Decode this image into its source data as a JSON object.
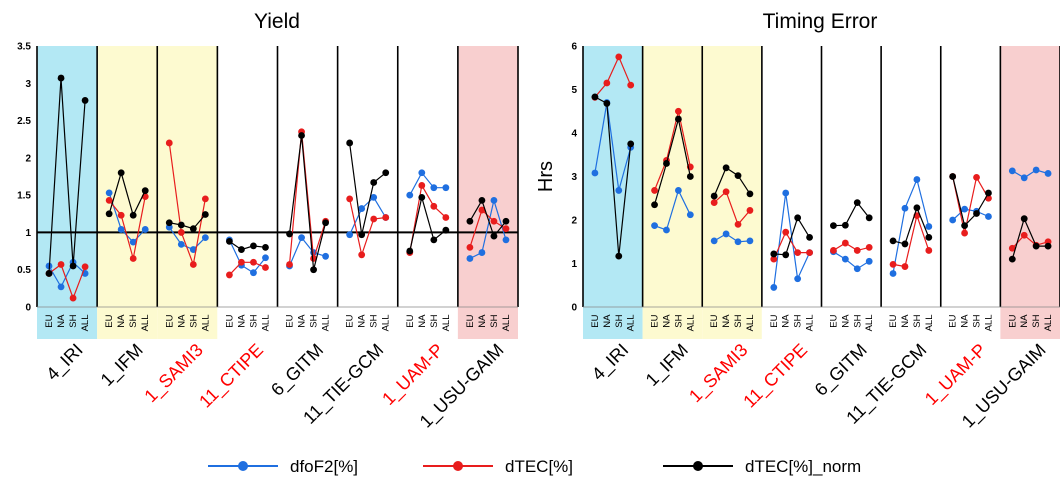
{
  "chart_data": [
    {
      "type": "line",
      "title": "Yield",
      "ylabel": "",
      "ylim": [
        0,
        3.5
      ],
      "yticks": [
        "0",
        "0.5",
        "1",
        "1.5",
        "2",
        "2.5",
        "3",
        "3.5"
      ],
      "reference_line": 1,
      "groups": [
        {
          "name": "4_IRI",
          "label_color": "#000000",
          "bg": "#b3e8f4",
          "regions": [
            "EU",
            "NA",
            "SH",
            "ALL"
          ]
        },
        {
          "name": "1_IFM",
          "label_color": "#000000",
          "bg": "#fdfad0",
          "regions": [
            "EU",
            "NA",
            "SH",
            "ALL"
          ]
        },
        {
          "name": "1_SAMI3",
          "label_color": "#ff0000",
          "bg": "#fdfad0",
          "regions": [
            "EU",
            "NA",
            "SH",
            "ALL"
          ]
        },
        {
          "name": "11_CTIPE",
          "label_color": "#ff0000",
          "bg": "#ffffff",
          "regions": [
            "EU",
            "NA",
            "SH",
            "ALL"
          ]
        },
        {
          "name": "6_GITM",
          "label_color": "#000000",
          "bg": "#ffffff",
          "regions": [
            "EU",
            "NA",
            "SH",
            "ALL"
          ]
        },
        {
          "name": "11_TIE-GCM",
          "label_color": "#000000",
          "bg": "#ffffff",
          "regions": [
            "EU",
            "NA",
            "SH",
            "ALL"
          ]
        },
        {
          "name": "1_UAM-P",
          "label_color": "#ff0000",
          "bg": "#ffffff",
          "regions": [
            "EU",
            "NA",
            "SH",
            "ALL"
          ]
        },
        {
          "name": "1_USU-GAIM",
          "label_color": "#000000",
          "bg": "#f8cfcf",
          "regions": [
            "EU",
            "NA",
            "SH",
            "ALL"
          ]
        }
      ],
      "series": [
        {
          "name": "dfoF2[%]",
          "color": "#1f6fe0",
          "values": [
            [
              0.55,
              0.27,
              0.6,
              0.45
            ],
            [
              1.53,
              1.04,
              0.87,
              1.04
            ],
            [
              1.07,
              0.84,
              0.77,
              0.93
            ],
            [
              0.9,
              0.56,
              0.46,
              0.66
            ],
            [
              0.55,
              0.93,
              0.73,
              0.68
            ],
            [
              0.97,
              1.32,
              1.47,
              1.2
            ],
            [
              1.5,
              1.8,
              1.6,
              1.6
            ],
            [
              0.65,
              0.73,
              1.43,
              0.9
            ]
          ]
        },
        {
          "name": "dTEC[%]",
          "color": "#e81d1d",
          "values": [
            [
              0.45,
              0.57,
              0.12,
              0.54
            ],
            [
              1.43,
              1.23,
              0.65,
              1.48
            ],
            [
              2.2,
              1.0,
              0.57,
              1.45
            ],
            [
              0.43,
              0.6,
              0.6,
              0.53
            ],
            [
              0.57,
              2.35,
              0.65,
              1.15
            ],
            [
              1.45,
              0.7,
              1.18,
              1.2
            ],
            [
              0.73,
              1.63,
              1.35,
              1.2
            ],
            [
              0.8,
              1.3,
              1.15,
              1.05
            ]
          ]
        },
        {
          "name": "dTEC[%]_norm",
          "color": "#000000",
          "values": [
            [
              0.45,
              3.07,
              0.55,
              2.77
            ],
            [
              1.25,
              1.8,
              1.23,
              1.56
            ],
            [
              1.13,
              1.1,
              1.05,
              1.24
            ],
            [
              0.88,
              0.77,
              0.82,
              0.8
            ],
            [
              0.98,
              2.3,
              0.5,
              1.13
            ],
            [
              2.2,
              0.97,
              1.67,
              1.8
            ],
            [
              0.75,
              1.47,
              0.9,
              1.03
            ],
            [
              1.15,
              1.43,
              0.95,
              1.15
            ]
          ]
        }
      ]
    },
    {
      "type": "line",
      "title": "Timing Error",
      "ylabel": "Hrs",
      "ylim": [
        0,
        6
      ],
      "yticks": [
        "0",
        "1",
        "2",
        "3",
        "4",
        "5",
        "6"
      ],
      "groups": [
        {
          "name": "4_IRI",
          "label_color": "#000000",
          "bg": "#b3e8f4",
          "regions": [
            "EU",
            "NA",
            "SH",
            "ALL"
          ]
        },
        {
          "name": "1_IFM",
          "label_color": "#000000",
          "bg": "#fdfad0",
          "regions": [
            "EU",
            "NA",
            "SH",
            "ALL"
          ]
        },
        {
          "name": "1_SAMI3",
          "label_color": "#ff0000",
          "bg": "#fdfad0",
          "regions": [
            "EU",
            "NA",
            "SH",
            "ALL"
          ]
        },
        {
          "name": "11_CTIPE",
          "label_color": "#ff0000",
          "bg": "#ffffff",
          "regions": [
            "EU",
            "NA",
            "SH",
            "ALL"
          ]
        },
        {
          "name": "6_GITM",
          "label_color": "#000000",
          "bg": "#ffffff",
          "regions": [
            "EU",
            "NA",
            "SH",
            "ALL"
          ]
        },
        {
          "name": "11_TIE-GCM",
          "label_color": "#000000",
          "bg": "#ffffff",
          "regions": [
            "EU",
            "NA",
            "SH",
            "ALL"
          ]
        },
        {
          "name": "1_UAM-P",
          "label_color": "#ff0000",
          "bg": "#ffffff",
          "regions": [
            "EU",
            "NA",
            "SH",
            "ALL"
          ]
        },
        {
          "name": "1_USU-GAIM",
          "label_color": "#000000",
          "bg": "#f8cfcf",
          "regions": [
            "EU",
            "NA",
            "SH",
            "ALL"
          ]
        }
      ],
      "series": [
        {
          "name": "dfoF2[%]",
          "color": "#1f6fe0",
          "values": [
            [
              3.08,
              4.7,
              2.68,
              3.67
            ],
            [
              1.87,
              1.77,
              2.68,
              2.12
            ],
            [
              1.52,
              1.68,
              1.5,
              1.52
            ],
            [
              0.45,
              2.62,
              0.65,
              1.25
            ],
            [
              1.27,
              1.1,
              0.88,
              1.05
            ],
            [
              0.77,
              2.27,
              2.93,
              1.85
            ],
            [
              2.0,
              2.25,
              2.2,
              2.08
            ],
            [
              3.13,
              2.97,
              3.15,
              3.07
            ]
          ]
        },
        {
          "name": "dTEC[%]",
          "color": "#e81d1d",
          "values": [
            [
              4.82,
              5.15,
              5.75,
              5.1
            ],
            [
              2.68,
              3.37,
              4.5,
              3.22
            ],
            [
              2.4,
              2.65,
              1.9,
              2.22
            ],
            [
              1.1,
              1.72,
              1.25,
              1.25
            ],
            [
              1.3,
              1.47,
              1.3,
              1.37
            ],
            [
              0.98,
              0.93,
              2.1,
              1.3
            ],
            [
              3.0,
              1.7,
              2.98,
              2.5
            ],
            [
              1.35,
              1.65,
              1.42,
              1.5
            ]
          ]
        },
        {
          "name": "dTEC[%]_norm",
          "color": "#000000",
          "values": [
            [
              4.83,
              4.68,
              1.17,
              3.75
            ],
            [
              2.35,
              3.3,
              4.32,
              3.0
            ],
            [
              2.55,
              3.2,
              3.02,
              2.6
            ],
            [
              1.22,
              1.2,
              2.05,
              1.6
            ],
            [
              1.87,
              1.88,
              2.4,
              2.05
            ],
            [
              1.52,
              1.45,
              2.28,
              1.6
            ],
            [
              3.0,
              1.87,
              2.15,
              2.62
            ],
            [
              1.1,
              2.03,
              1.4,
              1.4
            ]
          ]
        }
      ]
    }
  ],
  "legend": [
    {
      "label": "dfoF2[%]",
      "color": "#1f6fe0"
    },
    {
      "label": "dTEC[%]",
      "color": "#e81d1d"
    },
    {
      "label": "dTEC[%]_norm",
      "color": "#000000"
    }
  ]
}
